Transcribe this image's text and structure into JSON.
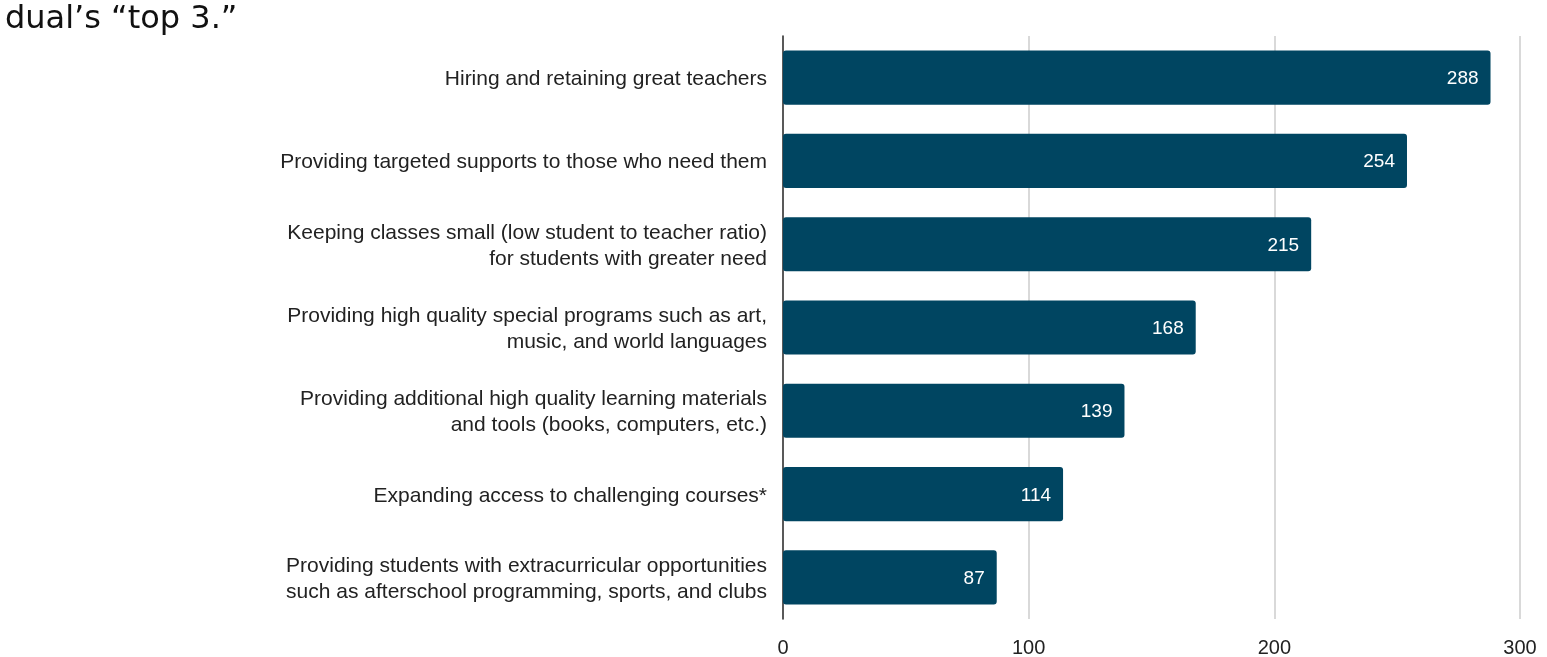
{
  "chart_data": {
    "type": "bar",
    "orientation": "horizontal",
    "title": "dual’s “top 3.”",
    "categories": [
      "Hiring and retaining great teachers",
      "Providing targeted supports to those who need them",
      "Keeping classes small (low student to teacher ratio)\nfor students with greater need",
      "Providing high quality special programs such as art,\nmusic, and world languages",
      "Providing additional high quality learning materials\nand tools (books, computers, etc.)",
      "Expanding access to challenging courses*",
      "Providing students with extracurricular opportunities\nsuch as afterschool programming, sports, and clubs"
    ],
    "values": [
      288,
      254,
      215,
      168,
      139,
      114,
      87
    ],
    "color": "#004561",
    "xlim": [
      0,
      300
    ],
    "xticks": [
      0,
      100,
      200,
      300
    ],
    "grid": "x",
    "data_labels": true
  }
}
